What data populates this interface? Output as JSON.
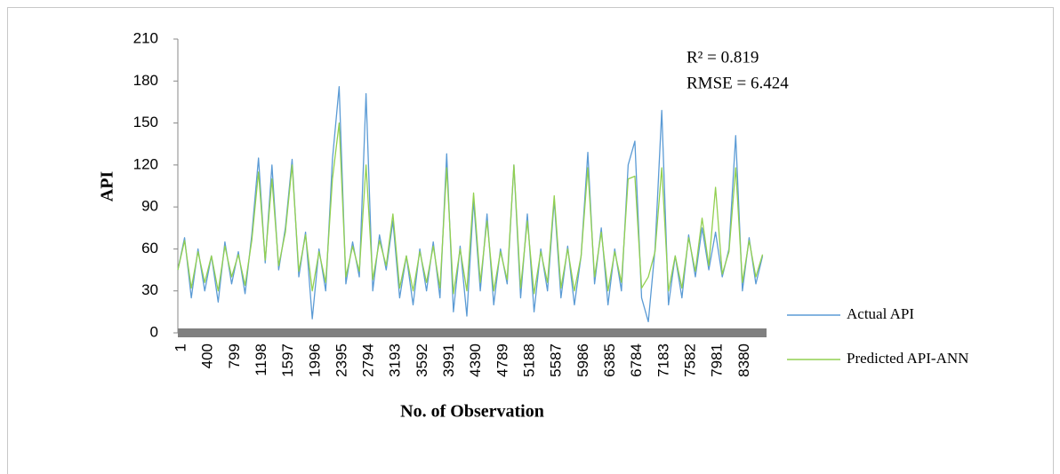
{
  "chart_data": {
    "type": "line",
    "y_label": "API",
    "x_label": "No. of Observation",
    "annotations": [
      "R² = 0.819",
      "RMSE = 6.424"
    ],
    "x": [
      1,
      101,
      201,
      301,
      401,
      501,
      601,
      701,
      801,
      901,
      1001,
      1101,
      1201,
      1301,
      1401,
      1501,
      1601,
      1701,
      1801,
      1901,
      2001,
      2101,
      2201,
      2301,
      2401,
      2501,
      2601,
      2701,
      2801,
      2901,
      3001,
      3101,
      3201,
      3301,
      3401,
      3501,
      3601,
      3701,
      3801,
      3901,
      4001,
      4101,
      4201,
      4301,
      4401,
      4501,
      4601,
      4701,
      4801,
      4901,
      5001,
      5101,
      5201,
      5301,
      5401,
      5501,
      5601,
      5701,
      5801,
      5901,
      6001,
      6101,
      6201,
      6301,
      6401,
      6501,
      6601,
      6701,
      6801,
      6901,
      7001,
      7101,
      7201,
      7301,
      7401,
      7501,
      7601,
      7701,
      7801,
      7901,
      8001,
      8101,
      8201,
      8301,
      8401,
      8501,
      8601,
      8701
    ],
    "series": [
      {
        "name": "Actual API",
        "color": "#5b9bd5",
        "values": [
          45,
          68,
          25,
          60,
          30,
          55,
          22,
          65,
          35,
          58,
          28,
          70,
          125,
          50,
          120,
          45,
          75,
          124,
          40,
          72,
          10,
          60,
          30,
          124,
          176,
          35,
          65,
          40,
          171,
          30,
          70,
          45,
          80,
          25,
          55,
          20,
          60,
          30,
          65,
          25,
          128,
          15,
          62,
          12,
          95,
          30,
          85,
          20,
          60,
          35,
          120,
          25,
          85,
          15,
          60,
          30,
          95,
          25,
          62,
          20,
          55,
          129,
          35,
          75,
          20,
          60,
          30,
          120,
          137,
          25,
          8,
          60,
          159,
          20,
          55,
          25,
          70,
          40,
          75,
          45,
          72,
          40,
          60,
          141,
          30,
          68,
          35,
          55
        ]
      },
      {
        "name": "Predicted API-ANN",
        "color": "#92d050",
        "values": [
          45,
          66,
          32,
          58,
          36,
          55,
          30,
          62,
          40,
          56,
          34,
          66,
          115,
          52,
          110,
          48,
          72,
          120,
          44,
          70,
          30,
          58,
          36,
          110,
          150,
          40,
          62,
          44,
          120,
          38,
          66,
          48,
          85,
          32,
          55,
          30,
          58,
          36,
          62,
          32,
          118,
          28,
          60,
          30,
          100,
          36,
          80,
          30,
          58,
          38,
          120,
          32,
          80,
          28,
          58,
          36,
          98,
          32,
          60,
          30,
          55,
          118,
          40,
          72,
          30,
          58,
          36,
          110,
          112,
          32,
          40,
          58,
          118,
          30,
          55,
          32,
          68,
          44,
          82,
          48,
          104,
          42,
          58,
          118,
          36,
          66,
          40,
          56
        ]
      }
    ],
    "xlim": [
      1,
      8760
    ],
    "ylim": [
      0,
      210
    ],
    "xticks": [
      1,
      400,
      799,
      1198,
      1597,
      1996,
      2395,
      2794,
      3193,
      3592,
      3991,
      4390,
      4789,
      5188,
      5587,
      5986,
      6385,
      6784,
      7183,
      7582,
      7981,
      8380
    ],
    "yticks": [
      0,
      30,
      60,
      90,
      120,
      150,
      180,
      210
    ],
    "grid": false,
    "legend": "right"
  }
}
